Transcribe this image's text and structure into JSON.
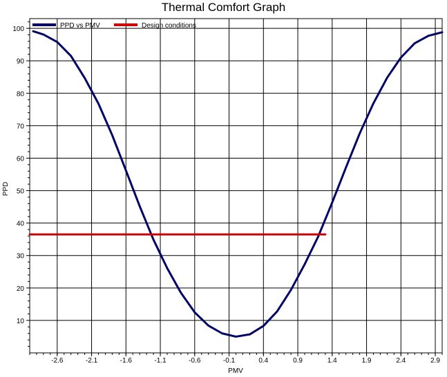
{
  "chart_data": {
    "type": "line",
    "title": "Thermal Comfort Graph",
    "xlabel": "PMV",
    "ylabel": "PPD",
    "xlim": [
      -3.0,
      3.0
    ],
    "ylim": [
      0,
      103
    ],
    "x_ticks": [
      -2.6,
      -2.1,
      -1.6,
      -1.1,
      -0.6,
      -0.1,
      0.4,
      0.9,
      1.4,
      1.9,
      2.4,
      2.9
    ],
    "x_tick_labels": [
      "-2.6",
      "-2.1",
      "-1.6",
      "-1.1",
      "-0.6",
      "-0.1",
      "0.4",
      "0.9",
      "1.4",
      "1.9",
      "2.4",
      "2.9"
    ],
    "y_ticks": [
      10,
      20,
      30,
      40,
      50,
      60,
      70,
      80,
      90,
      100
    ],
    "y_tick_labels": [
      "10",
      "20",
      "30",
      "40",
      "50",
      "60",
      "70",
      "80",
      "90",
      "100"
    ],
    "grid": true,
    "legend_position": "top-left",
    "series": [
      {
        "name": "PPD vs PMV",
        "color": "#000066",
        "x": [
          -2.95,
          -2.8,
          -2.6,
          -2.4,
          -2.2,
          -2.0,
          -1.8,
          -1.6,
          -1.4,
          -1.2,
          -1.0,
          -0.8,
          -0.6,
          -0.4,
          -0.2,
          0.0,
          0.2,
          0.4,
          0.6,
          0.8,
          1.0,
          1.2,
          1.4,
          1.6,
          1.8,
          2.0,
          2.2,
          2.4,
          2.6,
          2.8,
          3.0
        ],
        "y": [
          99.1,
          98.1,
          95.8,
          91.5,
          84.7,
          76.8,
          67.1,
          56.2,
          45.2,
          34.9,
          26.1,
          18.5,
          12.5,
          8.4,
          6.0,
          5.0,
          5.7,
          8.3,
          12.8,
          19.4,
          27.3,
          36.0,
          46.3,
          57.1,
          67.6,
          76.9,
          84.8,
          91.0,
          95.4,
          97.7,
          98.8
        ]
      },
      {
        "name": "Design conditions",
        "color": "#cc0000",
        "x": [
          -3.0,
          1.3
        ],
        "y": [
          36.5,
          36.5
        ]
      }
    ]
  }
}
